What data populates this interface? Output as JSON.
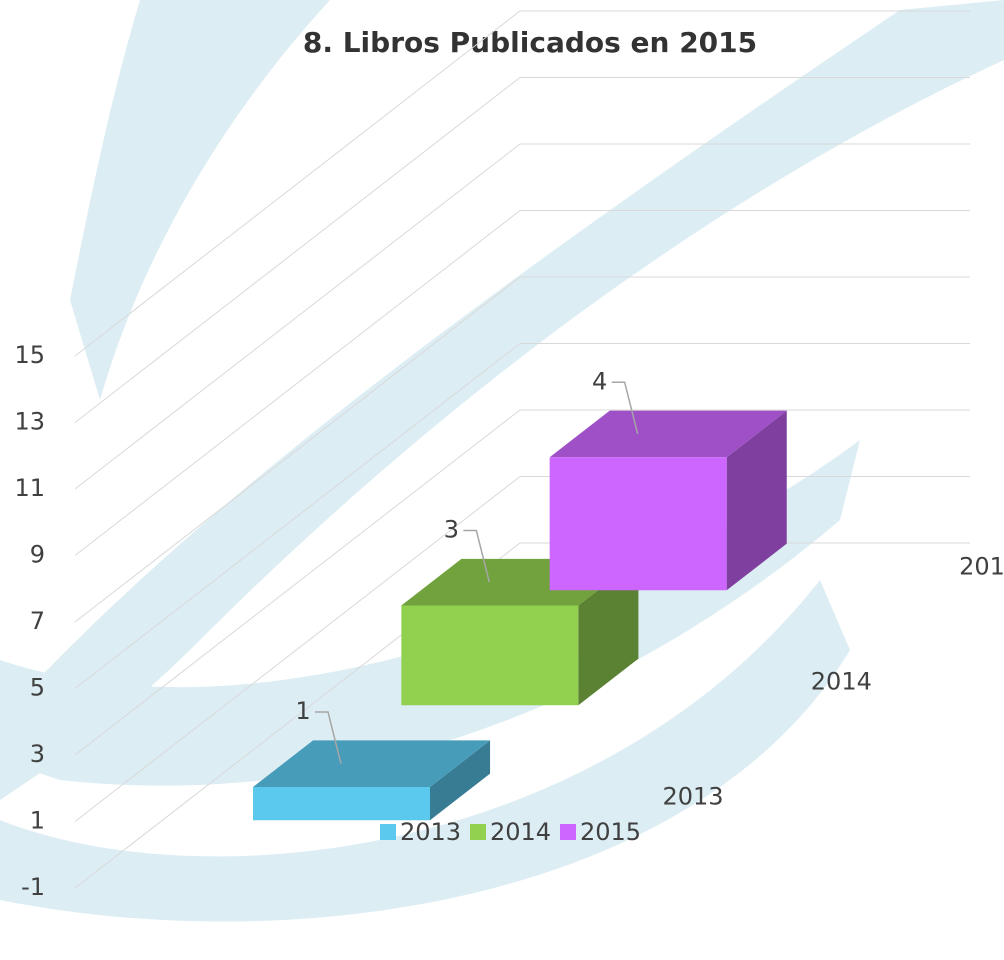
{
  "chart_data": {
    "type": "bar3d",
    "title": "8. Libros Publicados en 2015",
    "categories": [
      "2013",
      "2014",
      "2015"
    ],
    "values": [
      1,
      3,
      4
    ],
    "colors": [
      "#5bc8ee",
      "#92d050",
      "#cc66ff"
    ],
    "ylim": [
      -1,
      15
    ],
    "yticks": [
      -1,
      1,
      3,
      5,
      7,
      9,
      11,
      13,
      15
    ],
    "grid": true,
    "legend": "bottom"
  }
}
